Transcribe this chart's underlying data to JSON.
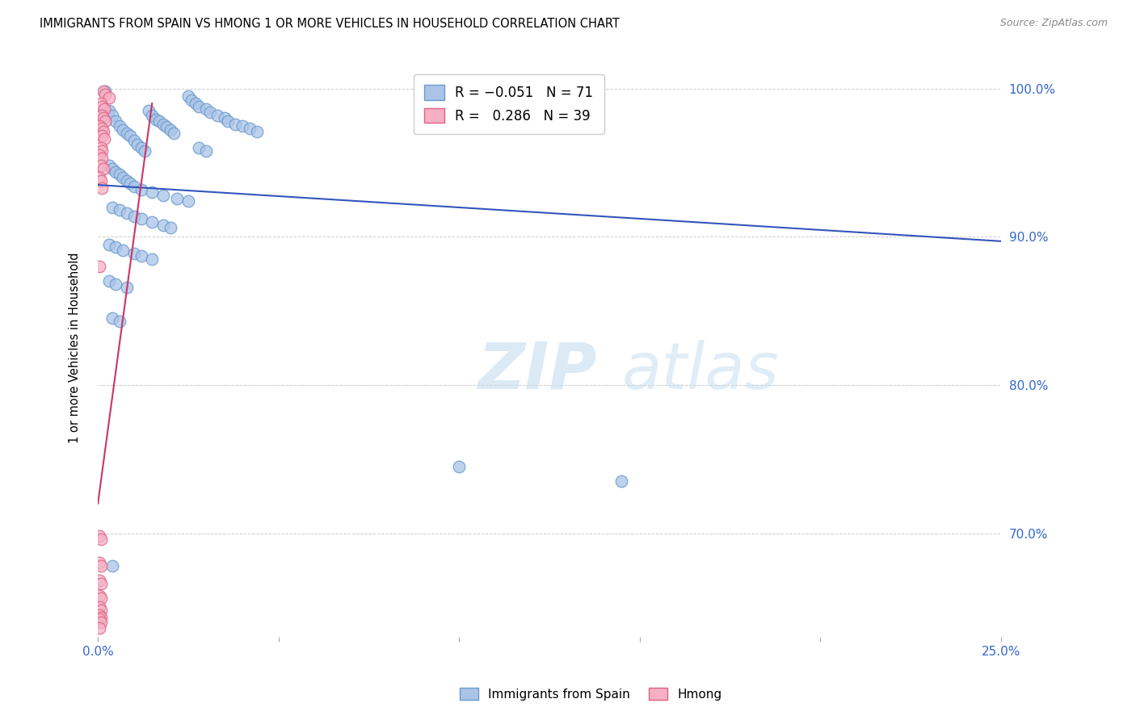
{
  "title": "IMMIGRANTS FROM SPAIN VS HMONG 1 OR MORE VEHICLES IN HOUSEHOLD CORRELATION CHART",
  "source": "Source: ZipAtlas.com",
  "ylabel": "1 or more Vehicles in Household",
  "background_color": "#ffffff",
  "grid_color": "#cccccc",
  "spain_color": "#aac4e8",
  "spain_edge_color": "#6699cc",
  "hmong_color": "#f5b0c5",
  "hmong_edge_color": "#e06080",
  "trendline_spain_color": "#3355bb",
  "trendline_hmong_color": "#cc3366",
  "watermark_color": "#d0e8f5",
  "xlim": [
    0.0,
    0.25
  ],
  "ylim": [
    0.63,
    1.02
  ],
  "xticks": [
    0.0,
    0.05,
    0.1,
    0.15,
    0.2,
    0.25
  ],
  "yticks": [
    0.7,
    0.8,
    0.9,
    1.0
  ],
  "spain_trendline": [
    0.0,
    0.935,
    0.25,
    0.897
  ],
  "hmong_trendline": [
    0.0,
    0.72,
    0.015,
    0.99
  ],
  "spain_points": [
    [
      0.002,
      0.998
    ],
    [
      0.003,
      0.985
    ],
    [
      0.004,
      0.982
    ],
    [
      0.005,
      0.978
    ],
    [
      0.006,
      0.975
    ],
    [
      0.007,
      0.972
    ],
    [
      0.008,
      0.97
    ],
    [
      0.009,
      0.968
    ],
    [
      0.01,
      0.965
    ],
    [
      0.011,
      0.962
    ],
    [
      0.012,
      0.96
    ],
    [
      0.013,
      0.958
    ],
    [
      0.014,
      0.985
    ],
    [
      0.015,
      0.982
    ],
    [
      0.016,
      0.979
    ],
    [
      0.017,
      0.978
    ],
    [
      0.018,
      0.976
    ],
    [
      0.019,
      0.974
    ],
    [
      0.02,
      0.972
    ],
    [
      0.021,
      0.97
    ],
    [
      0.025,
      0.995
    ],
    [
      0.026,
      0.992
    ],
    [
      0.027,
      0.99
    ],
    [
      0.028,
      0.988
    ],
    [
      0.03,
      0.986
    ],
    [
      0.031,
      0.984
    ],
    [
      0.033,
      0.982
    ],
    [
      0.035,
      0.98
    ],
    [
      0.036,
      0.978
    ],
    [
      0.038,
      0.976
    ],
    [
      0.04,
      0.975
    ],
    [
      0.042,
      0.973
    ],
    [
      0.044,
      0.971
    ],
    [
      0.003,
      0.948
    ],
    [
      0.004,
      0.946
    ],
    [
      0.005,
      0.944
    ],
    [
      0.006,
      0.942
    ],
    [
      0.007,
      0.94
    ],
    [
      0.008,
      0.938
    ],
    [
      0.009,
      0.936
    ],
    [
      0.01,
      0.934
    ],
    [
      0.012,
      0.932
    ],
    [
      0.015,
      0.93
    ],
    [
      0.018,
      0.928
    ],
    [
      0.022,
      0.926
    ],
    [
      0.025,
      0.924
    ],
    [
      0.028,
      0.96
    ],
    [
      0.03,
      0.958
    ],
    [
      0.004,
      0.92
    ],
    [
      0.006,
      0.918
    ],
    [
      0.008,
      0.916
    ],
    [
      0.01,
      0.914
    ],
    [
      0.012,
      0.912
    ],
    [
      0.015,
      0.91
    ],
    [
      0.018,
      0.908
    ],
    [
      0.02,
      0.906
    ],
    [
      0.003,
      0.895
    ],
    [
      0.005,
      0.893
    ],
    [
      0.007,
      0.891
    ],
    [
      0.01,
      0.889
    ],
    [
      0.012,
      0.887
    ],
    [
      0.015,
      0.885
    ],
    [
      0.003,
      0.87
    ],
    [
      0.005,
      0.868
    ],
    [
      0.008,
      0.866
    ],
    [
      0.004,
      0.845
    ],
    [
      0.006,
      0.843
    ],
    [
      0.1,
      0.745
    ],
    [
      0.145,
      0.735
    ],
    [
      0.004,
      0.678
    ]
  ],
  "hmong_points": [
    [
      0.0015,
      0.998
    ],
    [
      0.002,
      0.996
    ],
    [
      0.003,
      0.994
    ],
    [
      0.0008,
      0.99
    ],
    [
      0.0012,
      0.988
    ],
    [
      0.0018,
      0.986
    ],
    [
      0.001,
      0.982
    ],
    [
      0.0015,
      0.98
    ],
    [
      0.002,
      0.978
    ],
    [
      0.0005,
      0.975
    ],
    [
      0.001,
      0.973
    ],
    [
      0.0015,
      0.971
    ],
    [
      0.0012,
      0.968
    ],
    [
      0.0018,
      0.966
    ],
    [
      0.0008,
      0.96
    ],
    [
      0.0012,
      0.958
    ],
    [
      0.0005,
      0.955
    ],
    [
      0.001,
      0.953
    ],
    [
      0.0008,
      0.948
    ],
    [
      0.0015,
      0.946
    ],
    [
      0.0005,
      0.94
    ],
    [
      0.0008,
      0.938
    ],
    [
      0.001,
      0.933
    ],
    [
      0.0005,
      0.88
    ],
    [
      0.0005,
      0.698
    ],
    [
      0.0008,
      0.696
    ],
    [
      0.0005,
      0.68
    ],
    [
      0.0008,
      0.678
    ],
    [
      0.0005,
      0.668
    ],
    [
      0.0008,
      0.666
    ],
    [
      0.0005,
      0.658
    ],
    [
      0.0008,
      0.656
    ],
    [
      0.0005,
      0.65
    ],
    [
      0.0008,
      0.648
    ],
    [
      0.0005,
      0.645
    ],
    [
      0.0008,
      0.643
    ],
    [
      0.0005,
      0.642
    ],
    [
      0.0008,
      0.64
    ],
    [
      0.0005,
      0.636
    ]
  ]
}
